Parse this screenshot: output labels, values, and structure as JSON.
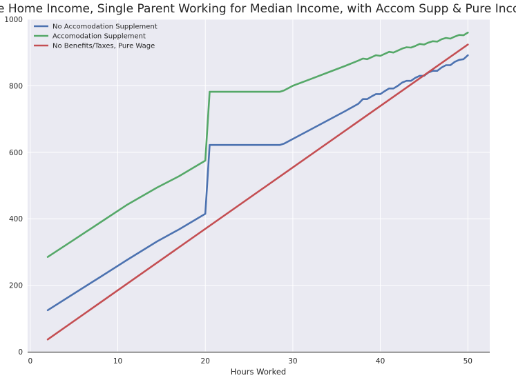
{
  "chart_data": {
    "type": "line",
    "title": "Take Home Income, Single Parent Working for Median Income, with Accom Supp & Pure Income",
    "xlabel": "Hours Worked",
    "ylabel": "",
    "xlim": [
      -0.3,
      52.5
    ],
    "ylim": [
      0,
      1000
    ],
    "xticks": [
      0,
      10,
      20,
      30,
      40,
      50
    ],
    "yticks": [
      0,
      200,
      400,
      600,
      800,
      1000
    ],
    "grid": true,
    "legend_position": "top-left",
    "series": [
      {
        "name": "No Accomodation Supplement",
        "color": "#4C72B0",
        "x": [
          2,
          5,
          8,
          11,
          14.5,
          17,
          20,
          20.5,
          24,
          28.5,
          29,
          30,
          32,
          34,
          36,
          37.5,
          38,
          38.5,
          39,
          39.5,
          40,
          40.5,
          41,
          41.5,
          42,
          42.5,
          43,
          43.5,
          44,
          44.5,
          45,
          45.5,
          46,
          46.5,
          47,
          47.5,
          48,
          48.5,
          49,
          49.5,
          50
        ],
        "y": [
          125,
          175,
          225,
          275,
          332,
          368,
          415,
          622,
          622,
          622,
          626,
          640,
          668,
          696,
          724,
          746,
          760,
          760,
          768,
          775,
          775,
          784,
          792,
          792,
          800,
          810,
          815,
          815,
          824,
          830,
          830,
          840,
          845,
          845,
          855,
          862,
          862,
          872,
          878,
          880,
          892
        ]
      },
      {
        "name": "Accomodation Supplement",
        "color": "#55A868",
        "x": [
          2,
          5,
          8,
          11,
          14.5,
          17,
          20,
          20.5,
          24,
          28.5,
          29,
          30,
          32,
          34,
          36,
          37.5,
          38,
          38.5,
          39,
          39.5,
          40,
          40.5,
          41,
          41.5,
          42,
          42.5,
          43,
          43.5,
          44,
          44.5,
          45,
          45.5,
          46,
          46.5,
          47,
          47.5,
          48,
          48.5,
          49,
          49.5,
          50
        ],
        "y": [
          285,
          337,
          389,
          441,
          494,
          528,
          575,
          782,
          782,
          782,
          786,
          800,
          820,
          840,
          860,
          876,
          882,
          880,
          886,
          892,
          890,
          896,
          902,
          900,
          906,
          912,
          916,
          915,
          920,
          926,
          924,
          930,
          934,
          933,
          940,
          944,
          942,
          948,
          953,
          952,
          960
        ]
      },
      {
        "name": "No Benefits/Taxes, Pure Wage",
        "color": "#C44E52",
        "x": [
          2,
          50
        ],
        "y": [
          37,
          924
        ]
      }
    ]
  }
}
